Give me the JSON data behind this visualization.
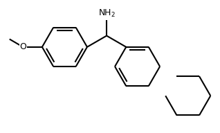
{
  "background_color": "#ffffff",
  "line_color": "#000000",
  "line_width": 1.5,
  "fig_width": 3.18,
  "fig_height": 1.92,
  "dpi": 100
}
